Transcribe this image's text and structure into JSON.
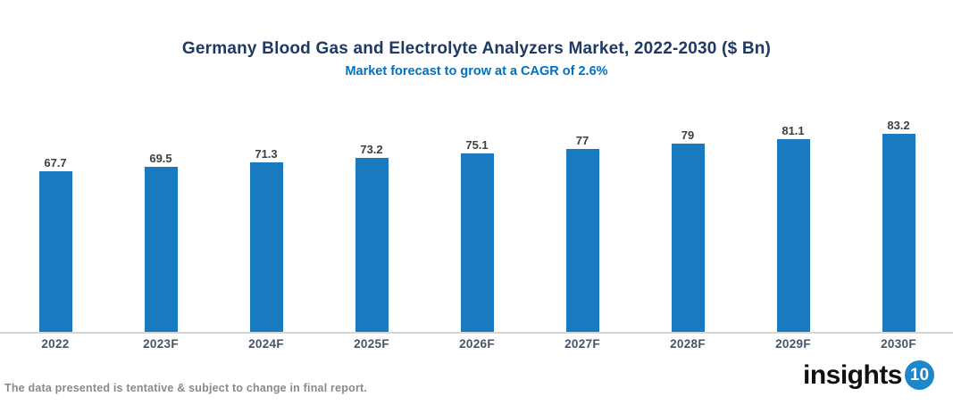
{
  "header": {
    "title": "Germany Blood Gas and Electrolyte Analyzers Market, 2022-2030 ($ Bn)",
    "subtitle": "Market forecast to grow at a CAGR of 2.6%"
  },
  "chart_data": {
    "type": "bar",
    "title": "Germany Blood Gas and Electrolyte Analyzers Market, 2022-2030 ($ Bn)",
    "subtitle": "Market forecast to grow at a CAGR of 2.6%",
    "categories": [
      "2022",
      "2023F",
      "2024F",
      "2025F",
      "2026F",
      "2027F",
      "2028F",
      "2029F",
      "2030F"
    ],
    "values": [
      67.7,
      69.5,
      71.3,
      73.2,
      75.1,
      77,
      79,
      81.1,
      83.2
    ],
    "xlabel": "",
    "ylabel": "",
    "ylim": [
      0,
      90
    ],
    "grid": false,
    "legend": "none",
    "value_labels_shown": true
  },
  "footer": {
    "disclaimer": "The data presented is tentative & subject to change in final report.",
    "logo_text": "insights",
    "logo_badge": "10"
  },
  "colors": {
    "title": "#1f3864",
    "subtitle": "#0070c0",
    "bar": "#1a7abf",
    "value_label": "#3f3f3f",
    "axis_label": "#44546a",
    "axis_line": "#d6d6d6",
    "disclaimer": "#8a8a8a",
    "logo_badge": "#1c87ca"
  }
}
